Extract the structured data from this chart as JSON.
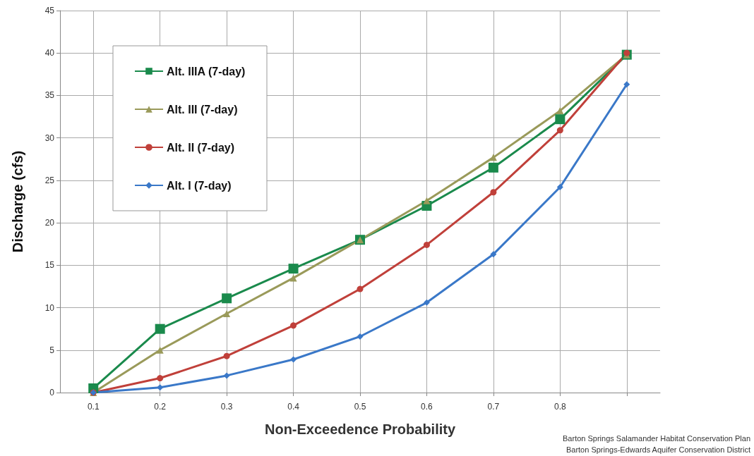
{
  "chart_data": {
    "type": "line",
    "xlabel": "Non-Exceedence Probability",
    "ylabel": "Discharge (cfs)",
    "x": [
      0.1,
      0.2,
      0.3,
      0.4,
      0.5,
      0.6,
      0.7,
      0.8,
      0.9
    ],
    "xlim": [
      0.05,
      0.95
    ],
    "xticks": [
      0.1,
      0.2,
      0.3,
      0.4,
      0.5,
      0.6,
      0.7,
      0.8,
      {
        "value": 0.9,
        "label": null
      }
    ],
    "ylim": [
      0,
      45
    ],
    "yticks": [
      0,
      5,
      10,
      15,
      20,
      25,
      30,
      35,
      40,
      45
    ],
    "grid": true,
    "legend": "top left",
    "series": [
      {
        "name": "Alt. IIIA (7-day)",
        "color": "#1a8a4c",
        "marker": "square",
        "values": [
          0.5,
          7.5,
          11.1,
          14.6,
          18.0,
          22.0,
          26.5,
          32.2,
          39.8
        ]
      },
      {
        "name": "Alt. III (7-day)",
        "color": "#9a9a5a",
        "marker": "triangle",
        "values": [
          0,
          5.0,
          9.3,
          13.5,
          18.0,
          22.6,
          27.7,
          33.2,
          39.8
        ]
      },
      {
        "name": "Alt. II (7-day)",
        "color": "#c0403a",
        "marker": "circle",
        "values": [
          0,
          1.7,
          4.3,
          7.9,
          12.2,
          17.4,
          23.6,
          30.9,
          40.0
        ]
      },
      {
        "name": "Alt. I (7-day)",
        "color": "#3a78c8",
        "marker": "diamond",
        "values": [
          0,
          0.6,
          2.0,
          3.9,
          6.6,
          10.6,
          16.3,
          24.2,
          36.3
        ]
      }
    ],
    "annotations": [
      "Barton Springs Salamander Habitat Conservation Plan",
      "Barton Springs-Edwards Aquifer Conservation District"
    ]
  }
}
